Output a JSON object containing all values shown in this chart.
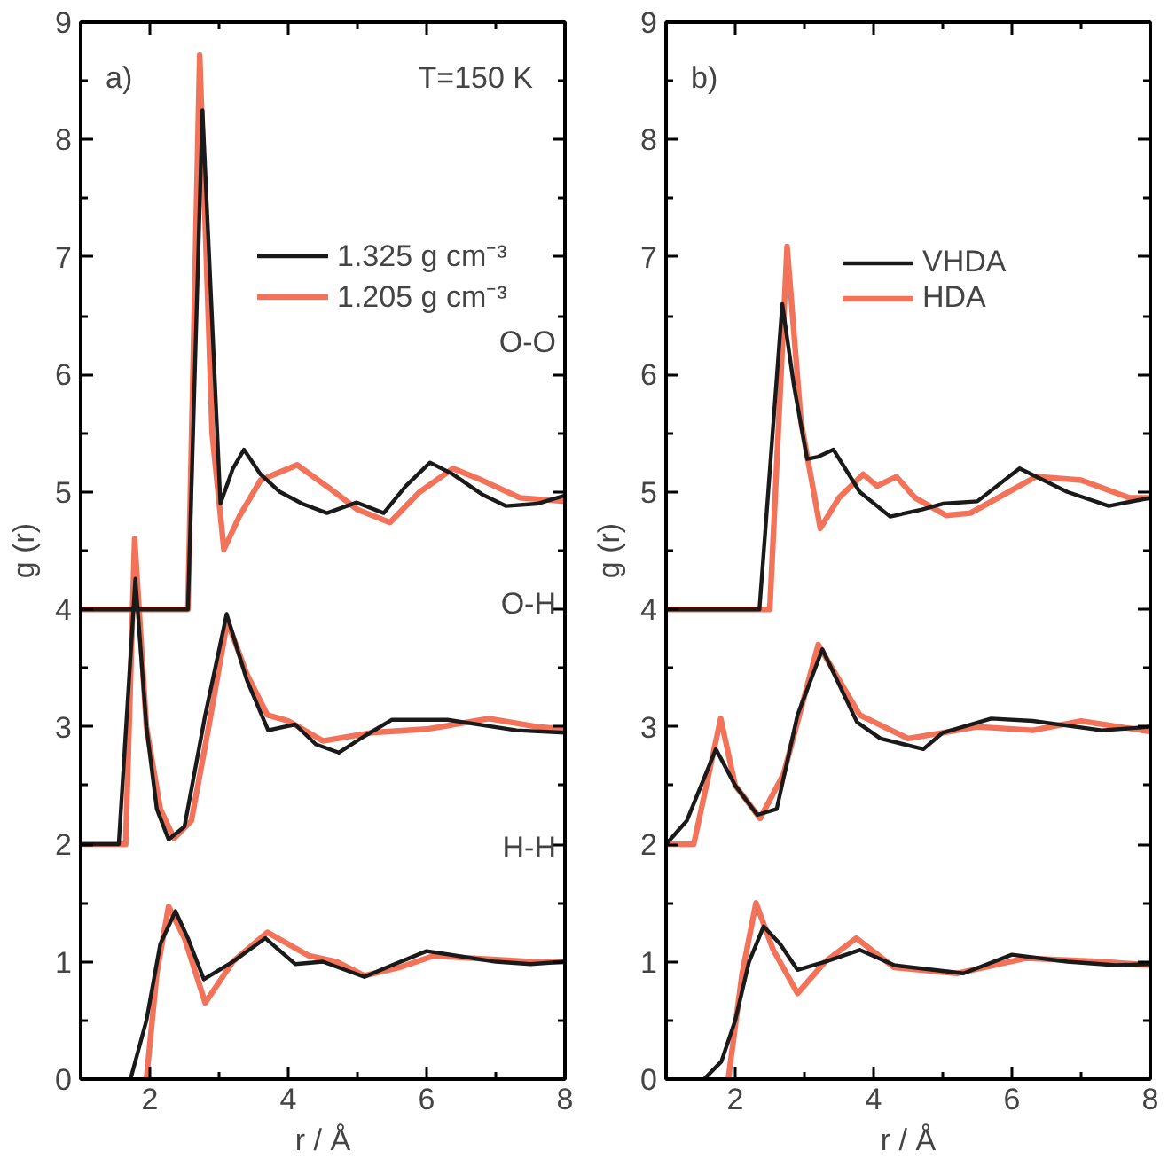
{
  "chart_data": [
    {
      "type": "line",
      "xlabel": "r / Å",
      "ylabel": "g (r)",
      "xlim": [
        1,
        8
      ],
      "ylim": [
        0,
        9
      ],
      "xticks": [
        2,
        {
          "value": 3,
          "label": null
        },
        4,
        {
          "value": 5,
          "label": null
        },
        6,
        {
          "value": 7,
          "label": null
        },
        8
      ],
      "yticks": [
        0,
        {
          "value": 0.5,
          "label": null
        },
        1,
        {
          "value": 1.5,
          "label": null
        },
        2,
        {
          "value": 2.5,
          "label": null
        },
        3,
        {
          "value": 3.5,
          "label": null
        },
        4,
        {
          "value": 4.5,
          "label": null
        },
        5,
        {
          "value": 5.5,
          "label": null
        },
        6,
        {
          "value": 6.5,
          "label": null
        },
        7,
        {
          "value": 7.5,
          "label": null
        },
        8,
        {
          "value": 8.5,
          "label": null
        },
        9
      ],
      "grid": false,
      "legend": "top right",
      "marker": "none",
      "line_style": "solid",
      "annotations": [
        "a)",
        "T=150 K",
        "O-O",
        "O-H",
        "H-H"
      ],
      "series": [
        {
          "name": "1.325 g cm⁻³",
          "color": "#1a1a1a",
          "x": [
            1,
            2.55,
            2.76,
            3.02,
            3.2,
            3.36,
            3.6,
            3.88,
            4.2,
            4.56,
            4.99,
            5.38,
            5.7,
            6.05,
            6.38,
            6.8,
            7.15,
            7.6,
            8
          ],
          "values": [
            4,
            4,
            8.25,
            4.9,
            5.2,
            5.36,
            5.15,
            5.0,
            4.9,
            4.82,
            4.91,
            4.82,
            5.05,
            5.25,
            5.15,
            4.98,
            4.88,
            4.9,
            4.97
          ]
        },
        {
          "color": "#1a1a1a",
          "x": [
            1,
            1.55,
            1.79,
            1.95,
            2.1,
            2.27,
            2.5,
            2.8,
            3.11,
            3.4,
            3.71,
            4.1,
            4.4,
            4.73,
            5.1,
            5.5,
            6.3,
            7.3,
            8
          ],
          "values": [
            2,
            2,
            4.26,
            3.0,
            2.3,
            2.04,
            2.15,
            3.1,
            3.96,
            3.4,
            2.97,
            3.02,
            2.85,
            2.78,
            2.92,
            3.06,
            3.06,
            2.97,
            2.95
          ]
        },
        {
          "color": "#1a1a1a",
          "x": [
            1.72,
            1.95,
            2.15,
            2.37,
            2.55,
            2.78,
            3.2,
            3.67,
            4.1,
            4.5,
            5.1,
            5.5,
            6.0,
            7.0,
            7.5,
            8
          ],
          "values": [
            0,
            0.5,
            1.15,
            1.43,
            1.2,
            0.85,
            1.0,
            1.2,
            0.98,
            1.0,
            0.87,
            0.97,
            1.09,
            1.0,
            0.98,
            1.0
          ]
        },
        {
          "name": "1.205 g cm⁻³",
          "color": "#f05a3c",
          "x": [
            1,
            2.55,
            2.72,
            2.9,
            3.07,
            3.3,
            3.6,
            4.13,
            4.6,
            5.0,
            5.47,
            5.9,
            6.38,
            6.8,
            7.35,
            8
          ],
          "values": [
            4,
            4,
            8.72,
            5.5,
            4.51,
            4.8,
            5.1,
            5.23,
            5.03,
            4.85,
            4.74,
            5.0,
            5.2,
            5.1,
            4.95,
            4.92
          ]
        },
        {
          "color": "#f05a3c",
          "x": [
            1,
            1.65,
            1.78,
            1.95,
            2.15,
            2.35,
            2.6,
            2.85,
            3.12,
            3.4,
            3.7,
            4.0,
            4.5,
            5.2,
            6.0,
            6.9,
            7.6,
            8
          ],
          "values": [
            2,
            2,
            4.6,
            3.0,
            2.3,
            2.05,
            2.2,
            3.0,
            3.9,
            3.45,
            3.1,
            3.05,
            2.88,
            2.95,
            2.98,
            3.07,
            3.0,
            2.98
          ]
        },
        {
          "color": "#f05a3c",
          "x": [
            1.95,
            2.1,
            2.27,
            2.5,
            2.8,
            3.2,
            3.7,
            4.3,
            4.7,
            5.1,
            5.6,
            6.1,
            7.5,
            8
          ],
          "values": [
            0,
            0.9,
            1.47,
            1.2,
            0.65,
            1.0,
            1.25,
            1.05,
            1.0,
            0.88,
            0.95,
            1.05,
            1.0,
            1.0
          ]
        }
      ]
    },
    {
      "type": "line",
      "xlabel": "r / Å",
      "ylabel": "g (r)",
      "xlim": [
        1,
        8
      ],
      "ylim": [
        0,
        9
      ],
      "xticks": [
        2,
        {
          "value": 3,
          "label": null
        },
        4,
        {
          "value": 5,
          "label": null
        },
        6,
        {
          "value": 7,
          "label": null
        },
        8
      ],
      "yticks": [
        0,
        {
          "value": 0.5,
          "label": null
        },
        1,
        {
          "value": 1.5,
          "label": null
        },
        2,
        {
          "value": 2.5,
          "label": null
        },
        3,
        {
          "value": 3.5,
          "label": null
        },
        4,
        {
          "value": 4.5,
          "label": null
        },
        5,
        {
          "value": 5.5,
          "label": null
        },
        6,
        {
          "value": 6.5,
          "label": null
        },
        7,
        {
          "value": 7.5,
          "label": null
        },
        8,
        {
          "value": 8.5,
          "label": null
        },
        9
      ],
      "grid": false,
      "legend": "top right",
      "marker": "none",
      "line_style": "solid",
      "annotations": [
        "b)"
      ],
      "series": [
        {
          "name": "VHDA",
          "color": "#1a1a1a",
          "x": [
            1,
            2.35,
            2.68,
            2.85,
            3.04,
            3.2,
            3.42,
            3.8,
            4.24,
            4.7,
            5.0,
            5.5,
            6.11,
            6.8,
            7.4,
            8
          ],
          "values": [
            4,
            4,
            6.6,
            5.9,
            5.28,
            5.3,
            5.36,
            5.0,
            4.79,
            4.85,
            4.9,
            4.92,
            5.2,
            5.0,
            4.88,
            4.95
          ]
        },
        {
          "color": "#1a1a1a",
          "x": [
            1,
            1.3,
            1.72,
            2.0,
            2.32,
            2.6,
            2.9,
            3.26,
            3.76,
            4.1,
            4.72,
            5.0,
            5.7,
            6.3,
            7.3,
            8
          ],
          "values": [
            2,
            2.2,
            2.81,
            2.5,
            2.25,
            2.3,
            3.1,
            3.66,
            3.04,
            2.9,
            2.81,
            2.95,
            3.07,
            3.05,
            2.97,
            3.0
          ]
        },
        {
          "color": "#1a1a1a",
          "x": [
            1.55,
            1.8,
            2.0,
            2.2,
            2.41,
            2.65,
            2.9,
            3.3,
            3.8,
            4.3,
            5.3,
            6.0,
            6.8,
            7.5,
            8
          ],
          "values": [
            0,
            0.15,
            0.5,
            1.0,
            1.3,
            1.15,
            0.93,
            1.0,
            1.1,
            0.97,
            0.9,
            1.06,
            1.0,
            0.97,
            0.98
          ]
        },
        {
          "name": "HDA",
          "color": "#f05a3c",
          "x": [
            1,
            2.5,
            2.75,
            2.95,
            3.23,
            3.5,
            3.85,
            4.05,
            4.33,
            4.6,
            5.05,
            5.4,
            5.8,
            6.35,
            7.0,
            7.7,
            8
          ],
          "values": [
            4,
            4,
            7.09,
            5.6,
            4.69,
            4.95,
            5.15,
            5.05,
            5.13,
            4.95,
            4.8,
            4.82,
            4.95,
            5.13,
            5.1,
            4.95,
            4.95
          ]
        },
        {
          "color": "#f05a3c",
          "x": [
            1,
            1.4,
            1.79,
            2.0,
            2.36,
            2.7,
            3.2,
            3.8,
            4.5,
            5.0,
            5.5,
            6.3,
            7.0,
            8
          ],
          "values": [
            2,
            2,
            3.07,
            2.5,
            2.22,
            2.6,
            3.7,
            3.1,
            2.9,
            2.95,
            3.0,
            2.97,
            3.05,
            2.96
          ]
        },
        {
          "color": "#f05a3c",
          "x": [
            1.9,
            2.1,
            2.3,
            2.55,
            2.9,
            3.3,
            3.75,
            4.3,
            5.2,
            6.2,
            7.3,
            8
          ],
          "values": [
            0,
            0.9,
            1.5,
            1.1,
            0.73,
            1.0,
            1.2,
            0.95,
            0.9,
            1.03,
            1.0,
            0.97
          ]
        }
      ]
    }
  ]
}
